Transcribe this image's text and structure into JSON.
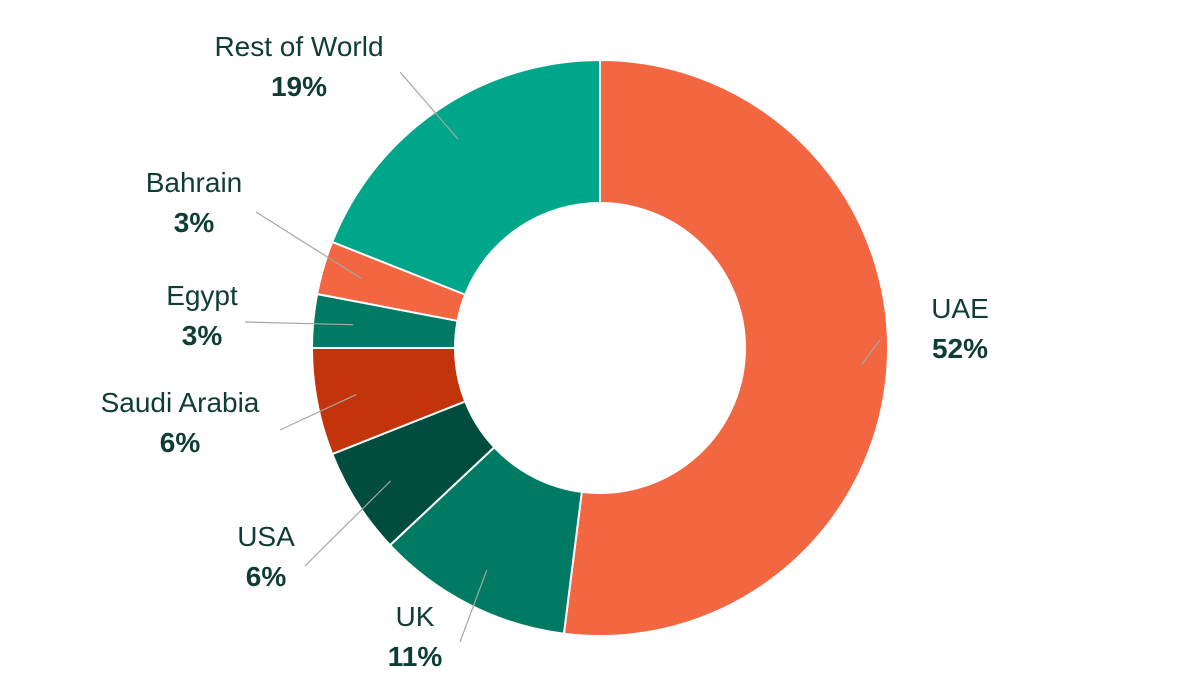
{
  "chart_data": {
    "type": "pie",
    "donut": true,
    "title": "",
    "slices": [
      {
        "label": "UAE",
        "value": 52,
        "value_label": "52%",
        "color": "#f26641"
      },
      {
        "label": "UK",
        "value": 11,
        "value_label": "11%",
        "color": "#007a63"
      },
      {
        "label": "USA",
        "value": 6,
        "value_label": "6%",
        "color": "#004d40"
      },
      {
        "label": "Saudi Arabia",
        "value": 6,
        "value_label": "6%",
        "color": "#c3330c"
      },
      {
        "label": "Egypt",
        "value": 3,
        "value_label": "3%",
        "color": "#007a63"
      },
      {
        "label": "Bahrain",
        "value": 3,
        "value_label": "3%",
        "color": "#f26641"
      },
      {
        "label": "Rest of World",
        "value": 19,
        "value_label": "19%",
        "color": "#00a68a"
      }
    ],
    "start": "top",
    "direction": "clockwise"
  }
}
